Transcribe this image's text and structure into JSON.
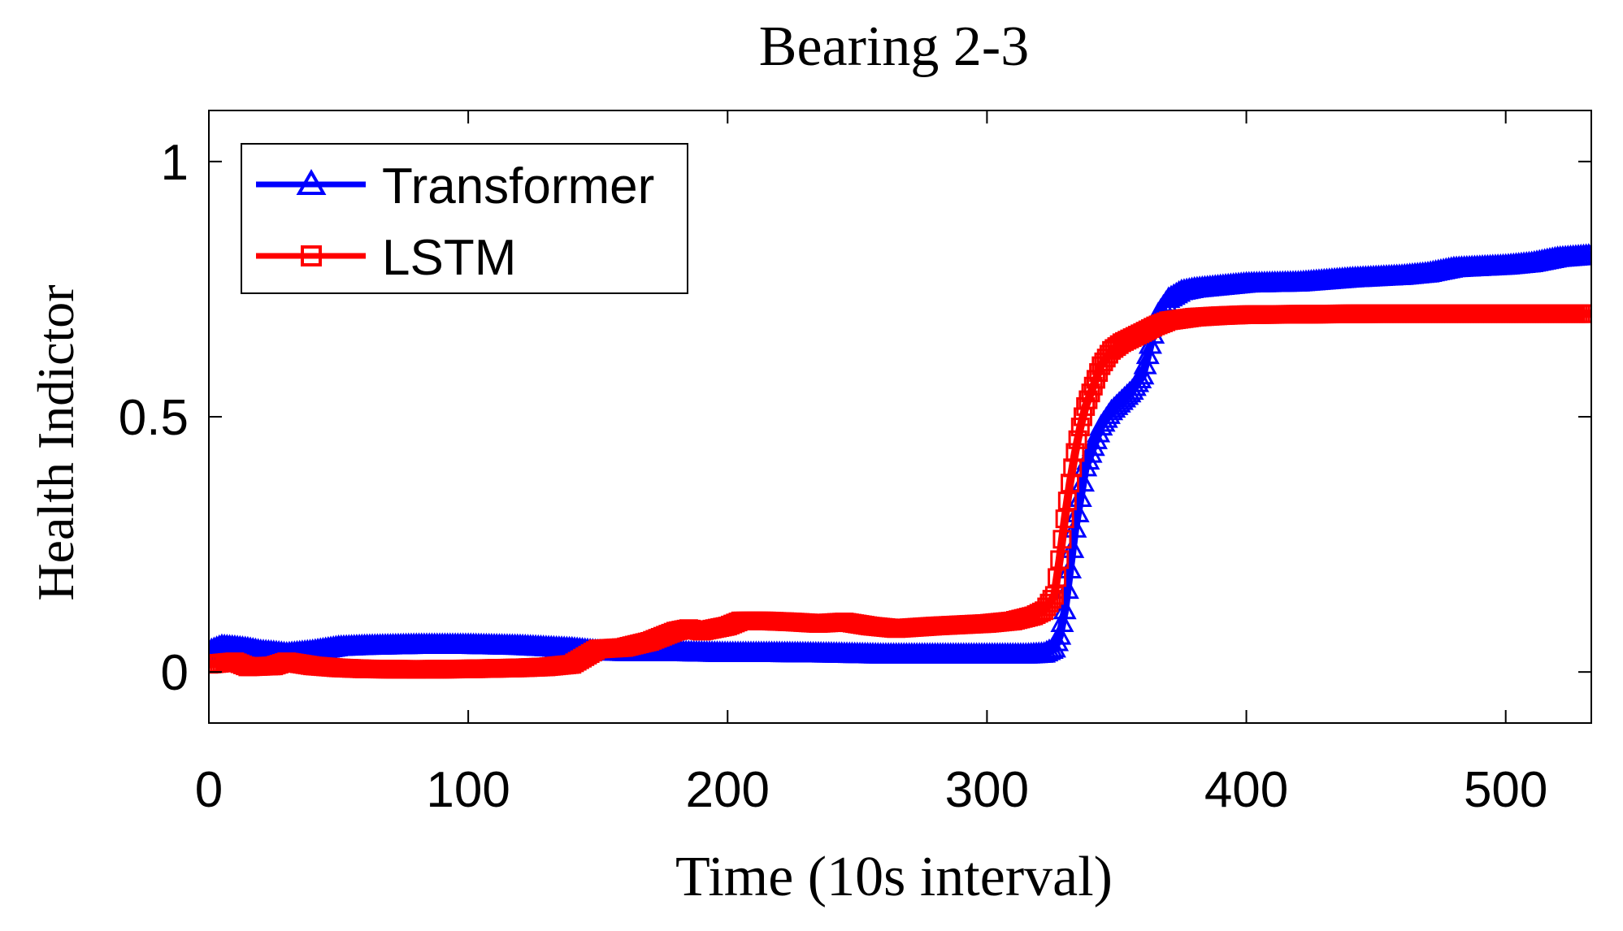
{
  "chart_data": {
    "type": "line",
    "title": "Bearing 2-3",
    "xlabel": "Time (10s interval)",
    "ylabel": "Health Indictor",
    "xlim": [
      0,
      533
    ],
    "ylim": [
      -0.1,
      1.1
    ],
    "xticks": [
      0,
      100,
      200,
      300,
      400,
      500
    ],
    "xtick_labels": [
      "0",
      "100",
      "200",
      "300",
      "400",
      "500"
    ],
    "yticks": [
      0,
      0.5,
      1
    ],
    "ytick_labels": [
      "0",
      "0.5",
      "1"
    ],
    "legend_position": "top-left",
    "series": [
      {
        "name": "Transformer",
        "color": "#0000ff",
        "marker": "triangle",
        "points": [
          [
            0,
            0.04
          ],
          [
            5,
            0.05
          ],
          [
            10,
            0.048
          ],
          [
            15,
            0.045
          ],
          [
            20,
            0.04
          ],
          [
            25,
            0.038
          ],
          [
            30,
            0.035
          ],
          [
            40,
            0.04
          ],
          [
            50,
            0.048
          ],
          [
            60,
            0.05
          ],
          [
            80,
            0.052
          ],
          [
            100,
            0.052
          ],
          [
            120,
            0.05
          ],
          [
            140,
            0.045
          ],
          [
            150,
            0.04
          ],
          [
            160,
            0.038
          ],
          [
            180,
            0.038
          ],
          [
            200,
            0.036
          ],
          [
            220,
            0.036
          ],
          [
            240,
            0.035
          ],
          [
            260,
            0.033
          ],
          [
            280,
            0.033
          ],
          [
            300,
            0.033
          ],
          [
            315,
            0.033
          ],
          [
            322,
            0.035
          ],
          [
            326,
            0.045
          ],
          [
            328,
            0.07
          ],
          [
            330,
            0.12
          ],
          [
            332,
            0.2
          ],
          [
            334,
            0.28
          ],
          [
            336,
            0.34
          ],
          [
            338,
            0.4
          ],
          [
            341,
            0.44
          ],
          [
            344,
            0.48
          ],
          [
            348,
            0.51
          ],
          [
            352,
            0.53
          ],
          [
            356,
            0.55
          ],
          [
            360,
            0.58
          ],
          [
            363,
            0.64
          ],
          [
            366,
            0.7
          ],
          [
            370,
            0.73
          ],
          [
            375,
            0.745
          ],
          [
            380,
            0.75
          ],
          [
            390,
            0.755
          ],
          [
            400,
            0.76
          ],
          [
            420,
            0.762
          ],
          [
            440,
            0.77
          ],
          [
            460,
            0.775
          ],
          [
            470,
            0.78
          ],
          [
            480,
            0.79
          ],
          [
            500,
            0.795
          ],
          [
            510,
            0.8
          ],
          [
            520,
            0.81
          ],
          [
            533,
            0.815
          ]
        ]
      },
      {
        "name": "LSTM",
        "color": "#ff0000",
        "marker": "square",
        "points": [
          [
            0,
            0.015
          ],
          [
            10,
            0.02
          ],
          [
            15,
            0.01
          ],
          [
            25,
            0.012
          ],
          [
            30,
            0.02
          ],
          [
            40,
            0.012
          ],
          [
            50,
            0.008
          ],
          [
            60,
            0.006
          ],
          [
            80,
            0.005
          ],
          [
            100,
            0.006
          ],
          [
            120,
            0.008
          ],
          [
            130,
            0.01
          ],
          [
            140,
            0.015
          ],
          [
            145,
            0.03
          ],
          [
            150,
            0.045
          ],
          [
            160,
            0.048
          ],
          [
            170,
            0.06
          ],
          [
            180,
            0.08
          ],
          [
            185,
            0.085
          ],
          [
            190,
            0.08
          ],
          [
            200,
            0.09
          ],
          [
            205,
            0.1
          ],
          [
            215,
            0.1
          ],
          [
            225,
            0.098
          ],
          [
            235,
            0.095
          ],
          [
            245,
            0.098
          ],
          [
            255,
            0.09
          ],
          [
            265,
            0.085
          ],
          [
            280,
            0.09
          ],
          [
            300,
            0.095
          ],
          [
            310,
            0.1
          ],
          [
            318,
            0.11
          ],
          [
            322,
            0.12
          ],
          [
            326,
            0.15
          ],
          [
            328,
            0.22
          ],
          [
            330,
            0.3
          ],
          [
            332,
            0.37
          ],
          [
            334,
            0.43
          ],
          [
            336,
            0.48
          ],
          [
            338,
            0.52
          ],
          [
            341,
            0.56
          ],
          [
            344,
            0.6
          ],
          [
            348,
            0.63
          ],
          [
            352,
            0.645
          ],
          [
            356,
            0.655
          ],
          [
            360,
            0.665
          ],
          [
            365,
            0.678
          ],
          [
            370,
            0.688
          ],
          [
            380,
            0.695
          ],
          [
            390,
            0.698
          ],
          [
            400,
            0.7
          ],
          [
            450,
            0.702
          ],
          [
            500,
            0.702
          ],
          [
            533,
            0.702
          ]
        ]
      }
    ]
  }
}
